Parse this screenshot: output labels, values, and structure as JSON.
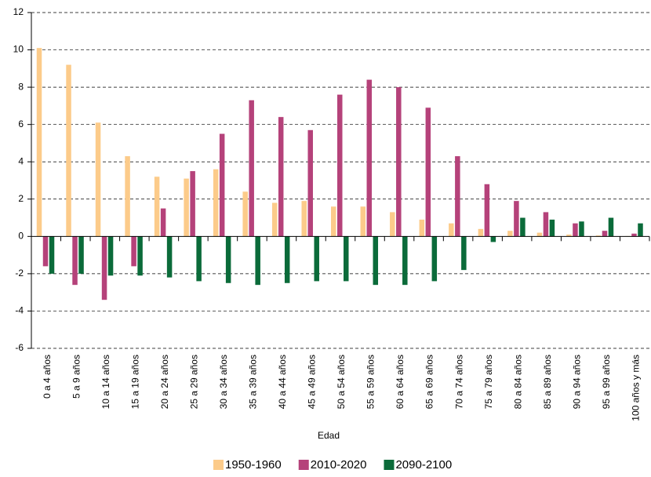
{
  "chart_data": {
    "type": "bar",
    "x_label": "Edad",
    "categories": [
      "0 a 4 años",
      "5 a 9 años",
      "10 a 14 años",
      "15 a 19 años",
      "20 a 24 años",
      "25 a 29 años",
      "30 a 34 años",
      "35 a 39 años",
      "40 a 44 años",
      "45 a 49 años",
      "50 a 54 años",
      "55 a 59 años",
      "60 a 64 años",
      "65 a 69 años",
      "70 a 74 años",
      "75 a 79 años",
      "80 a 84 años",
      "85 a 89 años",
      "90 a 94 años",
      "95 a 99 años",
      "100 años y más"
    ],
    "series": [
      {
        "name": "1950-1960",
        "color": "#fccb8a",
        "values": [
          10.1,
          9.2,
          6.1,
          4.3,
          3.2,
          3.1,
          3.6,
          2.4,
          1.8,
          1.9,
          1.6,
          1.6,
          1.3,
          0.9,
          0.7,
          0.4,
          0.3,
          0.2,
          0.1,
          0.05,
          0.02
        ]
      },
      {
        "name": "2010-2020",
        "color": "#b5427a",
        "values": [
          -1.6,
          -2.6,
          -3.4,
          -1.6,
          1.5,
          3.5,
          5.5,
          7.3,
          6.4,
          5.7,
          7.6,
          8.4,
          8.0,
          6.9,
          4.3,
          2.8,
          1.9,
          1.3,
          0.7,
          0.3,
          0.15
        ]
      },
      {
        "name": "2090-2100",
        "color": "#0b6b3a",
        "values": [
          -2.0,
          -2.0,
          -2.1,
          -2.1,
          -2.2,
          -2.4,
          -2.5,
          -2.6,
          -2.5,
          -2.4,
          -2.4,
          -2.6,
          -2.6,
          -2.4,
          -1.8,
          -0.3,
          1.0,
          0.9,
          0.8,
          1.0,
          0.7
        ]
      }
    ],
    "ylim": [
      -6,
      12
    ],
    "yticks": [
      -6,
      -4,
      -2,
      0,
      2,
      4,
      6,
      8,
      10,
      12
    ],
    "grid": true,
    "legend": "bottom"
  }
}
